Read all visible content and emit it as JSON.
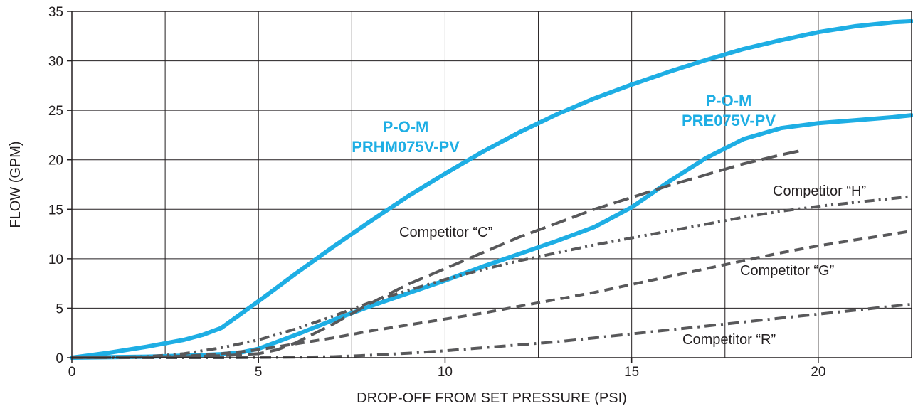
{
  "chart_data": {
    "type": "line",
    "xlabel": "DROP-OFF FROM SET PRESSURE (PSI)",
    "ylabel": "FLOW (GPM)",
    "xlim": [
      0,
      22.5
    ],
    "ylim": [
      0,
      35
    ],
    "x_ticks": [
      0,
      5,
      10,
      15,
      20
    ],
    "y_ticks": [
      0,
      5,
      10,
      15,
      20,
      25,
      30,
      35
    ],
    "grid": true,
    "series": [
      {
        "name": "P-O-M PRHM075V-PV",
        "label_lines": [
          "P-O-M",
          "PRHM075V-PV"
        ],
        "color": "#1eaee4",
        "style": "solid",
        "x": [
          0,
          1,
          2,
          3,
          3.5,
          4,
          5,
          6,
          7,
          8,
          9,
          10,
          11,
          12,
          13,
          14,
          15,
          16,
          17,
          18,
          19,
          20,
          21,
          22,
          22.5
        ],
        "y": [
          0,
          0.5,
          1.1,
          1.8,
          2.3,
          3.0,
          5.7,
          8.5,
          11.2,
          13.8,
          16.3,
          18.6,
          20.8,
          22.8,
          24.6,
          26.2,
          27.6,
          28.9,
          30.1,
          31.2,
          32.1,
          32.9,
          33.5,
          33.9,
          34.0
        ]
      },
      {
        "name": "P-O-M PRE075V-PV",
        "label_lines": [
          "P-O-M",
          "PRE075V-PV"
        ],
        "color": "#1eaee4",
        "style": "solid",
        "x": [
          0,
          2,
          3,
          4,
          4.5,
          5,
          6,
          7,
          8,
          9,
          10,
          11,
          12,
          13,
          14,
          15,
          16,
          17,
          18,
          19,
          20,
          21,
          22,
          22.5
        ],
        "y": [
          0,
          0.1,
          0.2,
          0.35,
          0.5,
          0.9,
          2.3,
          3.8,
          5.2,
          6.5,
          7.8,
          9.2,
          10.5,
          11.8,
          13.2,
          15.2,
          17.8,
          20.2,
          22.1,
          23.2,
          23.7,
          24.0,
          24.3,
          24.5
        ]
      },
      {
        "name": "Competitor “C”",
        "color": "#58585a",
        "style": "long-dash",
        "x": [
          0,
          3,
          4,
          5,
          5.5,
          6,
          7,
          8,
          9,
          10,
          11,
          12,
          13,
          14,
          15,
          16,
          17,
          18,
          19,
          19.5
        ],
        "y": [
          0,
          0.1,
          0.2,
          0.4,
          0.8,
          1.5,
          3.4,
          5.5,
          7.4,
          9.0,
          10.6,
          12.2,
          13.6,
          15.0,
          16.2,
          17.4,
          18.5,
          19.6,
          20.5,
          20.9
        ]
      },
      {
        "name": "Competitor “H”",
        "color": "#58585a",
        "style": "dash-dot-dot",
        "x": [
          0,
          2,
          3,
          4,
          5,
          6,
          7,
          8,
          9,
          10,
          11,
          12,
          13,
          14,
          15,
          16,
          17,
          18,
          19,
          20,
          21,
          22,
          22.5
        ],
        "y": [
          0,
          0.1,
          0.4,
          1.0,
          1.8,
          2.9,
          4.2,
          5.6,
          6.8,
          7.9,
          8.9,
          9.8,
          10.6,
          11.4,
          12.1,
          12.8,
          13.5,
          14.2,
          14.8,
          15.3,
          15.7,
          16.1,
          16.3
        ]
      },
      {
        "name": "Competitor “G”",
        "color": "#58585a",
        "style": "dashed",
        "x": [
          0,
          2,
          3,
          4,
          5,
          6,
          7,
          8,
          9,
          10,
          11,
          12,
          13,
          14,
          15,
          16,
          17,
          18,
          19,
          20,
          21,
          22,
          22.5
        ],
        "y": [
          0,
          0.05,
          0.15,
          0.4,
          0.8,
          1.4,
          2.0,
          2.7,
          3.3,
          3.9,
          4.5,
          5.2,
          5.9,
          6.6,
          7.4,
          8.2,
          9.0,
          9.8,
          10.6,
          11.3,
          11.9,
          12.5,
          12.8
        ]
      },
      {
        "name": "Competitor “R”",
        "color": "#58585a",
        "style": "dash-dot",
        "x": [
          0,
          4,
          6,
          7,
          8,
          9,
          10,
          11,
          12,
          13,
          14,
          15,
          16,
          17,
          18,
          19,
          20,
          21,
          22,
          22.5
        ],
        "y": [
          0,
          0,
          0.05,
          0.1,
          0.25,
          0.45,
          0.7,
          1.0,
          1.3,
          1.6,
          2.0,
          2.4,
          2.8,
          3.2,
          3.6,
          4.0,
          4.4,
          4.8,
          5.2,
          5.4
        ]
      }
    ]
  }
}
